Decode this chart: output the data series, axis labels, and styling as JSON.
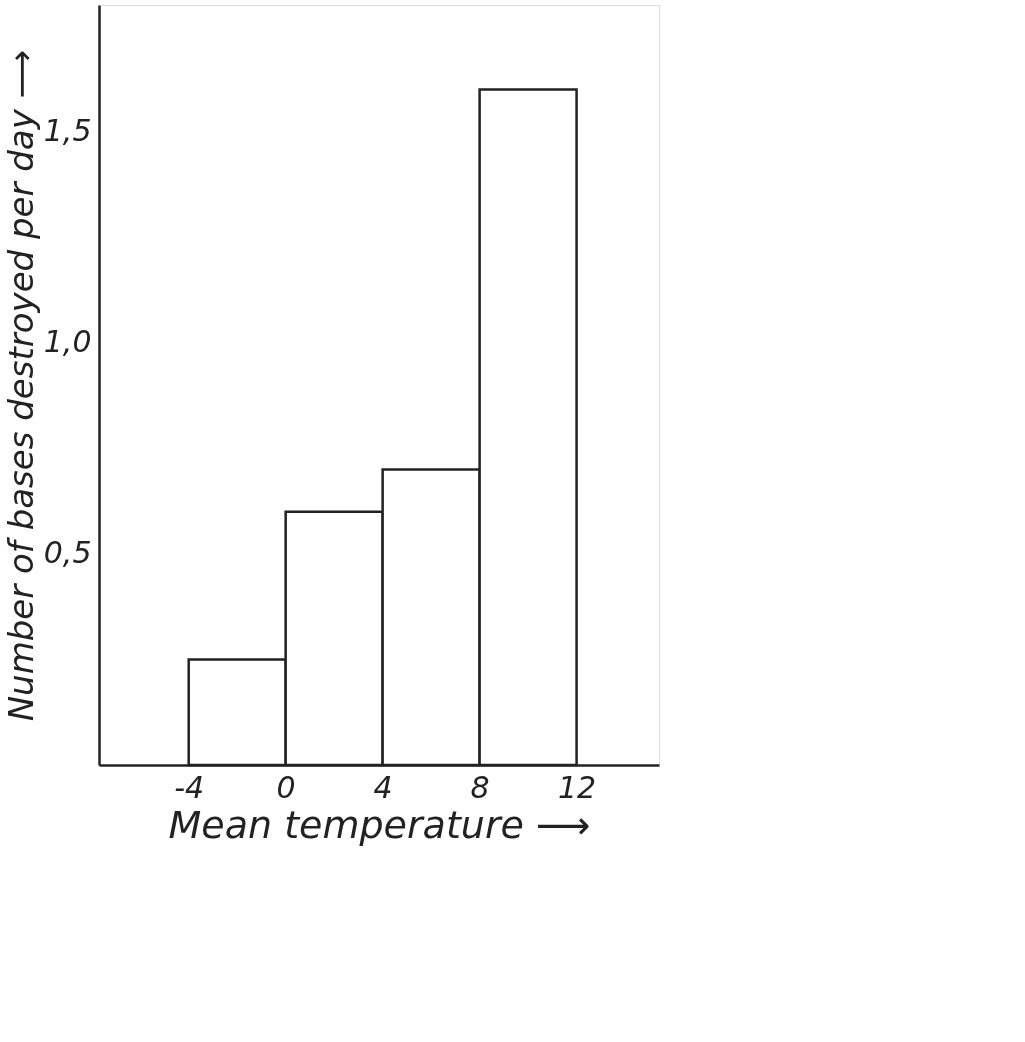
{
  "chart_data": {
    "type": "histogram",
    "xlabel": "Mean temperature ⟶",
    "ylabel": "Number of bases destroyed per day ⟶",
    "bins": [
      -4,
      0,
      4,
      8,
      12
    ],
    "values": [
      0.25,
      0.6,
      0.7,
      1.6
    ],
    "color": "#ffffff",
    "xlim": [
      -7.7,
      15.4
    ],
    "ylim": [
      0,
      1.8
    ],
    "xticks": [
      -4,
      0,
      4,
      8,
      12
    ],
    "yticks": [
      {
        "value": 0.5,
        "label": "0,5"
      },
      {
        "value": 1.0,
        "label": "1,0"
      },
      {
        "value": 1.5,
        "label": "1,5"
      }
    ],
    "grid": false
  }
}
